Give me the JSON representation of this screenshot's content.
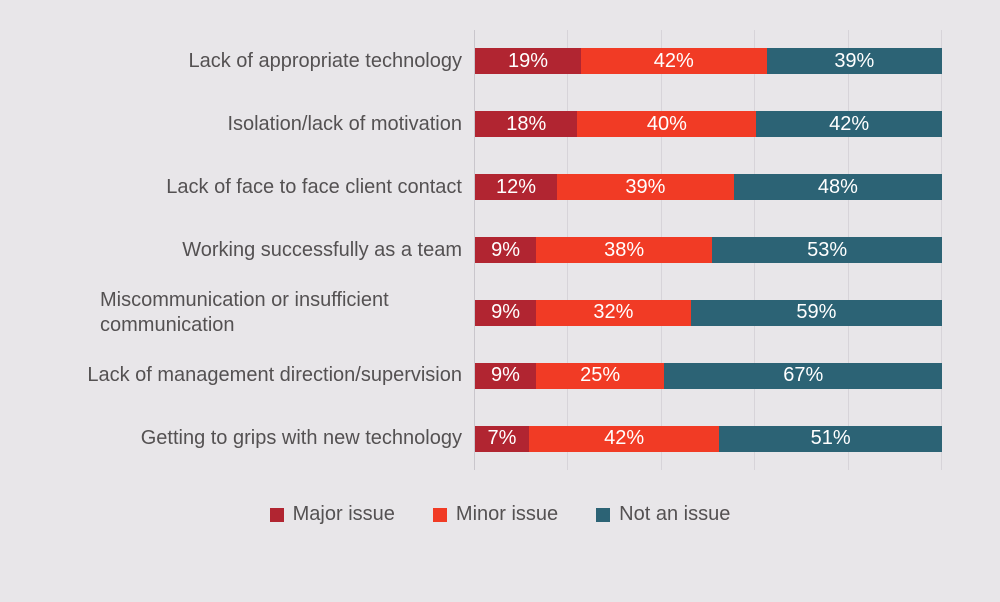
{
  "chart_data": {
    "type": "bar",
    "orientation": "horizontal",
    "stacked": true,
    "normalized_to_100_percent": true,
    "title": "",
    "xlabel": "",
    "ylabel": "",
    "xlim": [
      0,
      100
    ],
    "gridlines_percent": [
      0,
      20,
      40,
      60,
      80,
      100
    ],
    "grid": true,
    "legend_position": "bottom",
    "categories": [
      "Lack of appropriate technology",
      "Isolation/lack of motivation",
      "Lack of face to face client contact",
      "Working successfully as a team",
      "Miscommunication or insufficient communication",
      "Lack of management direction/supervision",
      "Getting to grips with new technology"
    ],
    "series": [
      {
        "name": "Major issue",
        "color": "#b12531",
        "values": [
          19,
          18,
          12,
          9,
          9,
          9,
          7
        ]
      },
      {
        "name": "Minor issue",
        "color": "#f13b25",
        "values": [
          42,
          40,
          39,
          38,
          32,
          25,
          42
        ]
      },
      {
        "name": "Not an issue",
        "color": "#2c6375",
        "values": [
          39,
          42,
          48,
          53,
          59,
          67,
          51
        ]
      }
    ],
    "display_labels": [
      [
        "19%",
        "42%",
        "39%"
      ],
      [
        "18%",
        "40%",
        "42%"
      ],
      [
        "12%",
        "39%",
        "48%"
      ],
      [
        "9%",
        "38%",
        "53%"
      ],
      [
        "9%",
        "32%",
        "59%"
      ],
      [
        "9%",
        "25%",
        "67%"
      ],
      [
        "7%",
        "42%",
        "51%"
      ]
    ]
  },
  "legend": {
    "items": [
      {
        "label": "Major issue",
        "color": "#b12531"
      },
      {
        "label": "Minor issue",
        "color": "#f13b25"
      },
      {
        "label": "Not an issue",
        "color": "#2c6375"
      }
    ]
  },
  "colors": {
    "background": "#e8e6e9",
    "gridline": "#d7d4d9",
    "axis": "#c9c6cc",
    "category_text": "#545152",
    "value_text": "#ffffff"
  }
}
